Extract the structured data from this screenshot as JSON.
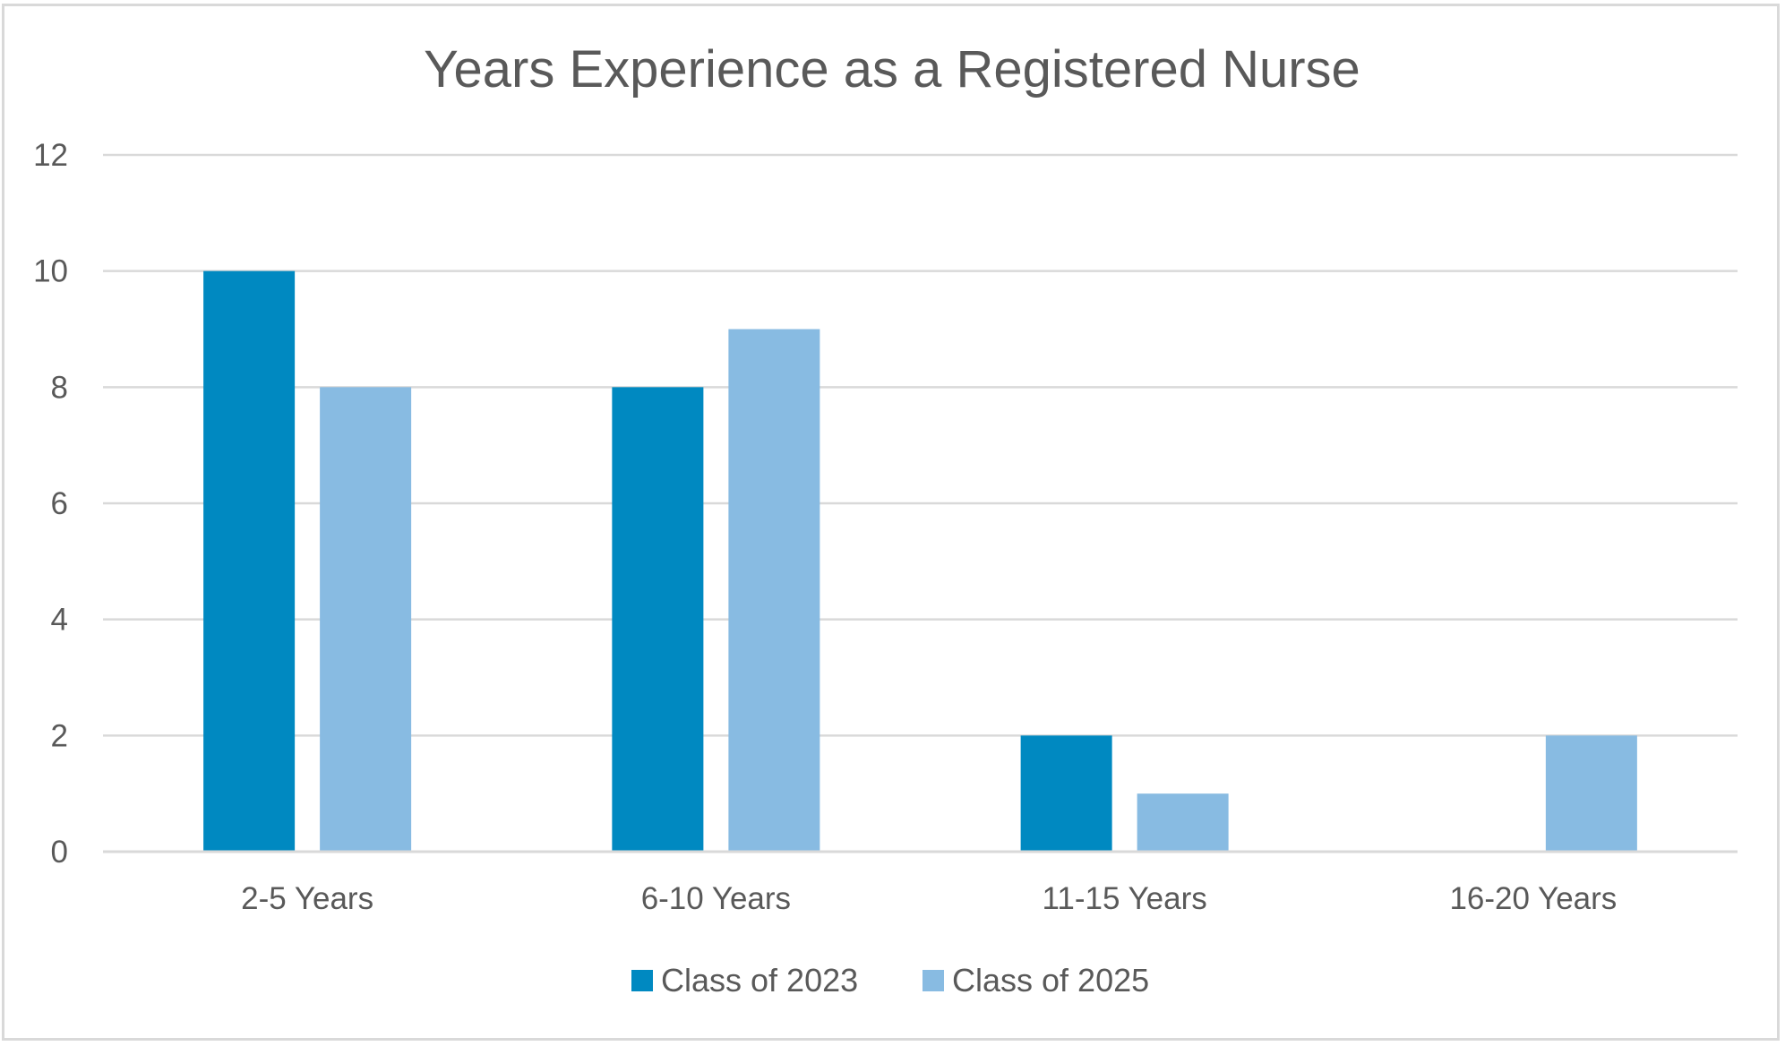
{
  "chart_data": {
    "type": "bar",
    "title": "Years Experience as a Registered Nurse",
    "xlabel": "",
    "ylabel": "",
    "categories": [
      "2-5 Years",
      "6-10 Years",
      "11-15 Years",
      "16-20 Years"
    ],
    "series": [
      {
        "name": "Class of 2023",
        "color": "#0089c1",
        "values": [
          10,
          8,
          2,
          0
        ]
      },
      {
        "name": "Class of 2025",
        "color": "#88bbe2",
        "values": [
          8,
          9,
          1,
          2
        ]
      }
    ],
    "ylim": [
      0,
      12
    ],
    "yticks": [
      "0",
      "2",
      "4",
      "6",
      "8",
      "10",
      "12"
    ],
    "grid": true,
    "legend_position": "bottom"
  }
}
